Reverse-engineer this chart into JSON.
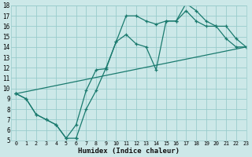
{
  "xlabel": "Humidex (Indice chaleur)",
  "bg_color": "#cce8e8",
  "grid_color": "#99cccc",
  "line_color": "#1a7a6e",
  "line1_x": [
    0,
    1,
    2,
    3,
    4,
    5,
    6,
    6,
    7,
    8,
    9,
    10,
    11,
    12,
    13,
    14,
    15,
    16,
    17,
    18,
    19,
    20,
    21,
    22,
    23
  ],
  "line1_y": [
    9.5,
    9.0,
    7.5,
    7.0,
    6.5,
    5.2,
    5.2,
    5.2,
    8.0,
    9.8,
    12.0,
    14.5,
    17.0,
    17.0,
    16.5,
    16.2,
    16.5,
    16.5,
    18.2,
    17.5,
    16.5,
    16.0,
    16.0,
    14.8,
    14.0
  ],
  "line2_x": [
    0,
    1,
    2,
    3,
    4,
    5,
    6,
    7,
    8,
    9,
    10,
    11,
    12,
    13,
    14,
    15,
    16,
    17,
    18,
    19,
    20,
    21,
    22,
    23
  ],
  "line2_y": [
    9.5,
    9.0,
    7.5,
    7.0,
    6.5,
    5.2,
    6.5,
    9.8,
    11.8,
    11.9,
    14.5,
    15.2,
    14.3,
    14.0,
    11.8,
    16.5,
    16.5,
    17.5,
    16.5,
    16.0,
    16.0,
    14.8,
    14.0,
    14.0
  ],
  "line3_x": [
    0,
    23
  ],
  "line3_y": [
    9.5,
    14.0
  ],
  "ylim": [
    5,
    18
  ],
  "xlim": [
    -0.5,
    23
  ],
  "yticks": [
    5,
    6,
    7,
    8,
    9,
    10,
    11,
    12,
    13,
    14,
    15,
    16,
    17,
    18
  ],
  "xticks": [
    0,
    1,
    2,
    3,
    4,
    5,
    6,
    7,
    8,
    9,
    10,
    11,
    12,
    13,
    14,
    15,
    16,
    17,
    18,
    19,
    20,
    21,
    22,
    23
  ]
}
